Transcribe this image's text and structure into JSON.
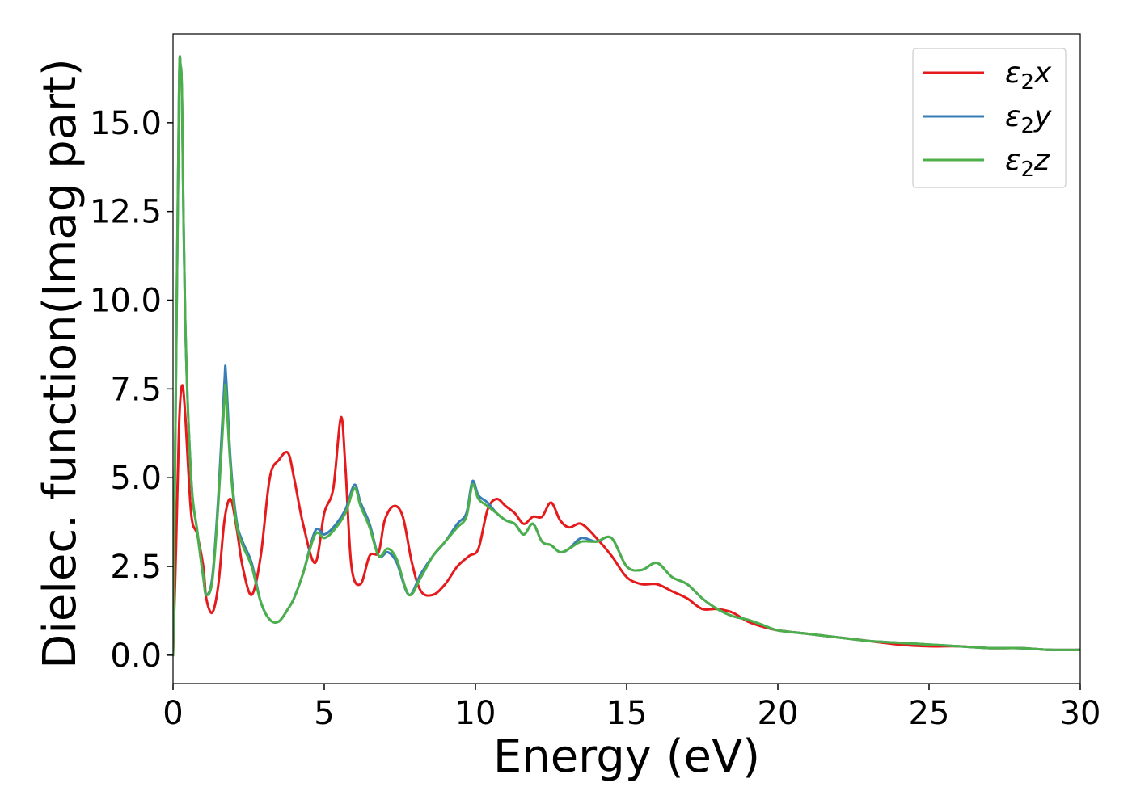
{
  "chart_data": {
    "type": "line",
    "xlabel": "Energy (eV)",
    "ylabel": "Dielec. function(Imag part)",
    "xlim": [
      0,
      30
    ],
    "ylim": [
      -0.8,
      17.5
    ],
    "xticks": [
      0,
      5,
      10,
      15,
      20,
      25,
      30
    ],
    "xtick_labels": [
      "0",
      "5",
      "10",
      "15",
      "20",
      "25",
      "30"
    ],
    "yticks": [
      0,
      2.5,
      5,
      7.5,
      10,
      12.5,
      15
    ],
    "ytick_labels": [
      "0.0",
      "2.5",
      "5.0",
      "7.5",
      "10.0",
      "12.5",
      "15.0"
    ],
    "grid": false,
    "legend_position": "top-right",
    "series": [
      {
        "name": "ε2x",
        "legend_base": "ε",
        "legend_sub": "2",
        "legend_var": "x",
        "color": "#e41a1c",
        "x": [
          0,
          0.1,
          0.2,
          0.3,
          0.4,
          0.6,
          0.8,
          1.0,
          1.1,
          1.3,
          1.5,
          1.7,
          1.9,
          2.1,
          2.3,
          2.6,
          2.9,
          3.2,
          3.5,
          3.8,
          4.0,
          4.3,
          4.7,
          5.0,
          5.3,
          5.55,
          5.7,
          5.9,
          6.2,
          6.5,
          6.8,
          7.0,
          7.3,
          7.6,
          7.9,
          8.2,
          8.6,
          9.0,
          9.4,
          9.8,
          10.1,
          10.4,
          10.7,
          11.0,
          11.3,
          11.6,
          11.9,
          12.2,
          12.5,
          12.8,
          13.1,
          13.5,
          14.0,
          14.5,
          15.0,
          15.5,
          16.0,
          16.5,
          17.0,
          17.5,
          18.0,
          18.5,
          19.0,
          19.5,
          20.0,
          21.0,
          22.0,
          23.0,
          24.0,
          25.0,
          26.0,
          27.0,
          28.0,
          29.0,
          30.0
        ],
        "y": [
          0,
          3.0,
          6.5,
          7.6,
          6.8,
          4.0,
          3.4,
          2.5,
          1.6,
          1.2,
          2.0,
          3.8,
          4.4,
          3.6,
          2.5,
          1.7,
          2.8,
          5.0,
          5.5,
          5.7,
          5.0,
          3.7,
          2.6,
          4.0,
          4.7,
          6.7,
          5.3,
          2.5,
          2.0,
          2.8,
          2.9,
          3.8,
          4.2,
          3.9,
          2.6,
          1.8,
          1.7,
          2.0,
          2.5,
          2.8,
          3.0,
          4.1,
          4.4,
          4.2,
          4.0,
          3.7,
          3.9,
          3.9,
          4.3,
          3.8,
          3.6,
          3.7,
          3.3,
          2.8,
          2.2,
          2.0,
          2.0,
          1.8,
          1.6,
          1.3,
          1.3,
          1.2,
          0.95,
          0.8,
          0.7,
          0.6,
          0.5,
          0.4,
          0.3,
          0.25,
          0.25,
          0.2,
          0.2,
          0.15,
          0.15
        ]
      },
      {
        "name": "ε2y",
        "legend_base": "ε",
        "legend_sub": "2",
        "legend_var": "y",
        "color": "#377eb8",
        "x": [
          0,
          0.1,
          0.2,
          0.25,
          0.3,
          0.4,
          0.6,
          0.8,
          1.0,
          1.1,
          1.3,
          1.5,
          1.7,
          1.75,
          1.9,
          2.1,
          2.3,
          2.6,
          2.9,
          3.2,
          3.5,
          3.8,
          4.0,
          4.3,
          4.7,
          5.0,
          5.3,
          5.7,
          6.0,
          6.2,
          6.5,
          6.8,
          7.1,
          7.4,
          7.8,
          8.2,
          8.6,
          9.0,
          9.4,
          9.7,
          9.9,
          10.1,
          10.4,
          10.7,
          11.0,
          11.3,
          11.6,
          11.9,
          12.2,
          12.5,
          12.8,
          13.1,
          13.5,
          14.0,
          14.5,
          15.0,
          15.5,
          16.0,
          16.5,
          17.0,
          17.5,
          18.0,
          18.5,
          19.0,
          19.5,
          20.0,
          21.0,
          22.0,
          23.0,
          24.0,
          25.0,
          26.0,
          27.0,
          28.0,
          29.0,
          30.0
        ],
        "y": [
          0,
          8.0,
          16.0,
          16.6,
          15.5,
          9.5,
          5.0,
          3.5,
          2.2,
          1.7,
          2.2,
          4.5,
          7.7,
          7.9,
          5.5,
          3.8,
          3.2,
          2.6,
          1.5,
          1.0,
          0.95,
          1.3,
          1.6,
          2.3,
          3.5,
          3.4,
          3.6,
          4.1,
          4.8,
          4.3,
          3.7,
          2.8,
          2.9,
          2.6,
          1.7,
          2.3,
          2.8,
          3.2,
          3.7,
          4.0,
          4.9,
          4.5,
          4.3,
          4.0,
          3.8,
          3.7,
          3.4,
          3.7,
          3.2,
          3.1,
          2.9,
          3.0,
          3.3,
          3.2,
          3.3,
          2.5,
          2.4,
          2.6,
          2.2,
          2.0,
          1.6,
          1.3,
          1.1,
          1.0,
          0.85,
          0.7,
          0.6,
          0.5,
          0.4,
          0.35,
          0.3,
          0.25,
          0.2,
          0.2,
          0.15,
          0.15
        ]
      },
      {
        "name": "ε2z",
        "legend_base": "ε",
        "legend_sub": "2",
        "legend_var": "z",
        "color": "#4daf4a",
        "x": [
          0,
          0.1,
          0.2,
          0.25,
          0.3,
          0.4,
          0.6,
          0.8,
          1.0,
          1.1,
          1.3,
          1.5,
          1.7,
          1.75,
          1.9,
          2.1,
          2.3,
          2.6,
          2.9,
          3.2,
          3.5,
          3.8,
          4.0,
          4.3,
          4.7,
          5.0,
          5.3,
          5.7,
          6.0,
          6.2,
          6.5,
          6.8,
          7.1,
          7.4,
          7.8,
          8.2,
          8.6,
          9.0,
          9.4,
          9.7,
          9.9,
          10.1,
          10.4,
          10.7,
          11.0,
          11.3,
          11.6,
          11.9,
          12.2,
          12.5,
          12.8,
          13.1,
          13.5,
          14.0,
          14.5,
          15.0,
          15.5,
          16.0,
          16.5,
          17.0,
          17.5,
          18.0,
          18.5,
          19.0,
          19.5,
          20.0,
          21.0,
          22.0,
          23.0,
          24.0,
          25.0,
          26.0,
          27.0,
          28.0,
          29.0,
          30.0
        ],
        "y": [
          0,
          8.0,
          16.0,
          16.6,
          15.5,
          9.5,
          5.0,
          3.5,
          2.2,
          1.7,
          2.1,
          4.3,
          7.2,
          7.4,
          5.3,
          3.7,
          3.1,
          2.5,
          1.5,
          1.0,
          0.95,
          1.3,
          1.6,
          2.3,
          3.4,
          3.3,
          3.5,
          4.0,
          4.7,
          4.2,
          3.6,
          2.8,
          3.0,
          2.7,
          1.7,
          2.2,
          2.8,
          3.2,
          3.6,
          3.9,
          4.8,
          4.4,
          4.2,
          4.0,
          3.8,
          3.7,
          3.4,
          3.7,
          3.2,
          3.1,
          2.9,
          3.0,
          3.2,
          3.2,
          3.3,
          2.5,
          2.4,
          2.6,
          2.2,
          2.0,
          1.6,
          1.3,
          1.1,
          1.0,
          0.85,
          0.7,
          0.6,
          0.5,
          0.4,
          0.35,
          0.3,
          0.25,
          0.2,
          0.2,
          0.15,
          0.15
        ]
      }
    ]
  }
}
